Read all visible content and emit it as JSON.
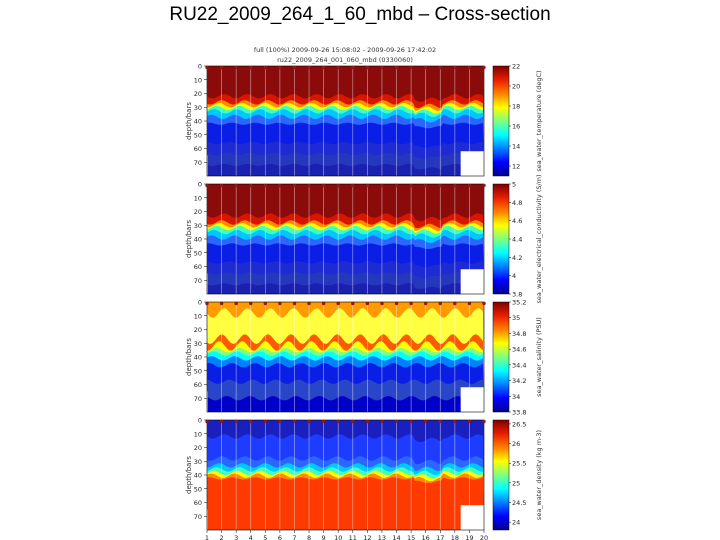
{
  "slide": {
    "title": "RU22_2009_264_1_60_mbd – Cross-section"
  },
  "figure": {
    "header_line1": "full (100%) 2009-09-26 15:08:02 - 2009-09-26 17:42:02",
    "header_line2": "ru22_2009_264_001_060_mbd (0330060)"
  },
  "chart_data": [
    {
      "type": "heatmap",
      "variable": "sea_water_temperature (degC)",
      "ylabel": "depth/bars",
      "ylim": [
        0,
        80
      ],
      "yticks": [
        0,
        10,
        20,
        30,
        40,
        50,
        60,
        70
      ],
      "x": [
        1,
        2,
        3,
        4,
        5,
        6,
        7,
        8,
        9,
        10,
        11,
        12,
        13,
        14,
        15,
        16,
        17,
        18,
        19,
        20
      ],
      "colorbar_ticks": [
        "22",
        "20",
        "18",
        "16",
        "14",
        "12"
      ],
      "colorbar_range": [
        11,
        22
      ],
      "colormap_high_to_low": [
        "#7f0000",
        "#e81e00",
        "#ff7f00",
        "#ffff00",
        "#7fff7f",
        "#00ffff",
        "#007fff",
        "#0000ff",
        "#00008f"
      ],
      "layers_top_to_bottom": [
        "#8b0a0a",
        "#d81600",
        "#ff8a00",
        "#ffff00",
        "#3fffbf",
        "#00c8ff",
        "#2b66ff",
        "#0a1ee6",
        "#1e2ad2",
        "#2437bd",
        "#1a20b0"
      ],
      "interface_depths": [
        22,
        26.5,
        28.5,
        30.5,
        33,
        37,
        42,
        56,
        64,
        72
      ]
    },
    {
      "type": "heatmap",
      "variable": "sea_water_electrical_conductivity (S/m)",
      "ylabel": "depth/bars",
      "ylim": [
        0,
        80
      ],
      "yticks": [
        0,
        10,
        20,
        30,
        40,
        50,
        60,
        70
      ],
      "x": [
        1,
        2,
        3,
        4,
        5,
        6,
        7,
        8,
        9,
        10,
        11,
        12,
        13,
        14,
        15,
        16,
        17,
        18,
        19,
        20
      ],
      "colorbar_ticks": [
        "5",
        "4.8",
        "4.6",
        "4.4",
        "4.2",
        "4",
        "3.8"
      ],
      "colorbar_range": [
        3.8,
        5
      ],
      "colormap_high_to_low": [
        "#7f0000",
        "#e81e00",
        "#ff7f00",
        "#ffff00",
        "#7fff7f",
        "#00ffff",
        "#007fff",
        "#0000ff",
        "#00008f"
      ],
      "layers_top_to_bottom": [
        "#8b0a0a",
        "#d81600",
        "#ff8a00",
        "#ffff00",
        "#3fffbf",
        "#00c8ff",
        "#2b66ff",
        "#0a1ee6",
        "#1e2ad2",
        "#2437bd",
        "#1a20b0"
      ],
      "interface_depths": [
        23,
        28,
        30,
        32,
        35,
        39,
        44,
        57,
        65,
        73
      ]
    },
    {
      "type": "heatmap",
      "variable": "sea_water_salinity (PSU)",
      "ylabel": "depth/bars",
      "ylim": [
        0,
        80
      ],
      "yticks": [
        0,
        10,
        20,
        30,
        40,
        50,
        60,
        70
      ],
      "x": [
        1,
        2,
        3,
        4,
        5,
        6,
        7,
        8,
        9,
        10,
        11,
        12,
        13,
        14,
        15,
        16,
        17,
        18,
        19,
        20
      ],
      "colorbar_ticks": [
        "35.2",
        "35",
        "34.8",
        "34.6",
        "34.4",
        "34.2",
        "34",
        "33.8"
      ],
      "colorbar_range": [
        33.8,
        35.2
      ],
      "colormap_high_to_low": [
        "#7f0000",
        "#e81e00",
        "#ff7f00",
        "#ffff00",
        "#7fff7f",
        "#00ffff",
        "#007fff",
        "#0000ff",
        "#00008f"
      ],
      "layers_top_to_bottom": [
        "#ff9a00",
        "#ffff40",
        "#ff5a00",
        "#ffff00",
        "#7fff7f",
        "#00ffff",
        "#007fff",
        "#0a1ee6",
        "#2a46c8",
        "#0000c8"
      ],
      "interface_depths": [
        8,
        27,
        32,
        35,
        37.5,
        41,
        46,
        58,
        70
      ]
    },
    {
      "type": "heatmap",
      "variable": "sea_water_density (kg m-3)",
      "ylabel": "depth/bars",
      "ylim": [
        0,
        80
      ],
      "yticks": [
        0,
        10,
        20,
        30,
        40,
        50,
        60,
        70
      ],
      "x": [
        1,
        2,
        3,
        4,
        5,
        6,
        7,
        8,
        9,
        10,
        11,
        12,
        13,
        14,
        15,
        16,
        17,
        18,
        19,
        20
      ],
      "colorbar_ticks": [
        "26.5",
        "26",
        "25.5",
        "25",
        "24.5",
        "24"
      ],
      "colorbar_range": [
        23.8,
        26.6
      ],
      "colormap_high_to_low": [
        "#7f0000",
        "#e81e00",
        "#ff7f00",
        "#ffff00",
        "#7fff7f",
        "#00ffff",
        "#007fff",
        "#0000ff",
        "#00008f"
      ],
      "layers_top_to_bottom": [
        "#1a20c0",
        "#1e3cff",
        "#2b66ff",
        "#00c8ff",
        "#3fffbf",
        "#ffff00",
        "#ff8a00",
        "#ff3a00"
      ],
      "interface_depths": [
        12,
        28,
        33,
        36,
        38.5,
        40.5,
        42.5
      ]
    }
  ]
}
